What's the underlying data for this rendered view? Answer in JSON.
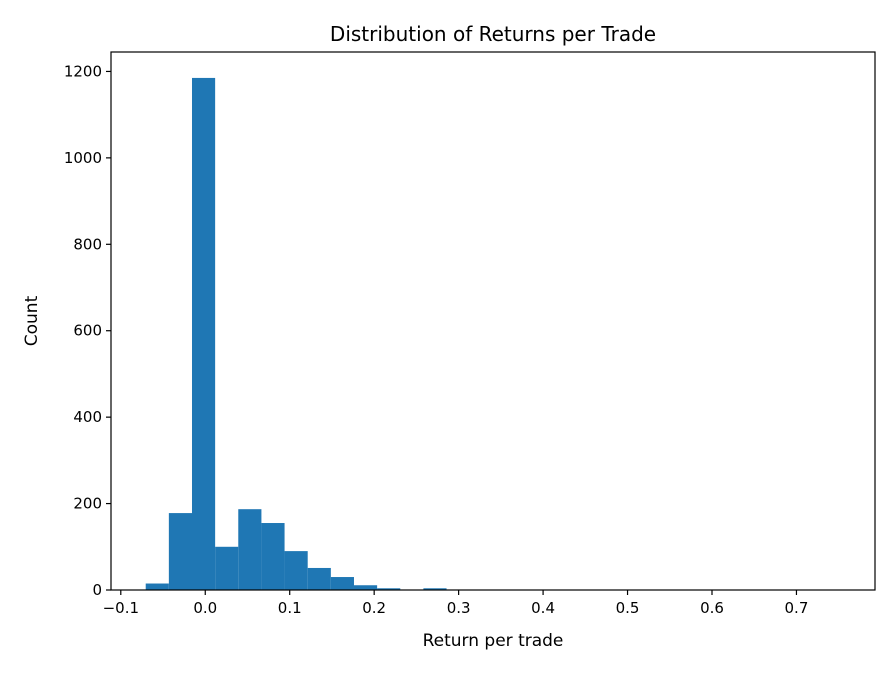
{
  "chart_data": {
    "type": "bar",
    "subtype": "histogram",
    "title": "Distribution of Returns per Trade",
    "xlabel": "Return per trade",
    "ylabel": "Count",
    "xlim": [
      -0.1116,
      0.793
    ],
    "ylim": [
      0,
      1245
    ],
    "bin_start": -0.0705,
    "bin_width": 0.0274,
    "counts": [
      15,
      178,
      1185,
      100,
      187,
      155,
      90,
      51,
      30,
      11,
      4,
      1,
      4,
      1,
      0,
      1,
      0,
      0,
      1,
      0,
      0,
      0,
      0,
      1,
      0,
      0,
      0,
      0,
      0,
      1
    ],
    "xticks": [
      -0.1,
      0.0,
      0.1,
      0.2,
      0.3,
      0.4,
      0.5,
      0.6,
      0.7
    ],
    "xtick_labels": [
      "−0.1",
      "0.0",
      "0.1",
      "0.2",
      "0.3",
      "0.4",
      "0.5",
      "0.6",
      "0.7"
    ],
    "yticks": [
      0,
      200,
      400,
      600,
      800,
      1000,
      1200
    ],
    "ytick_labels": [
      "0",
      "200",
      "400",
      "600",
      "800",
      "1000",
      "1200"
    ],
    "grid": false,
    "bar_color": "#1f77b4"
  }
}
